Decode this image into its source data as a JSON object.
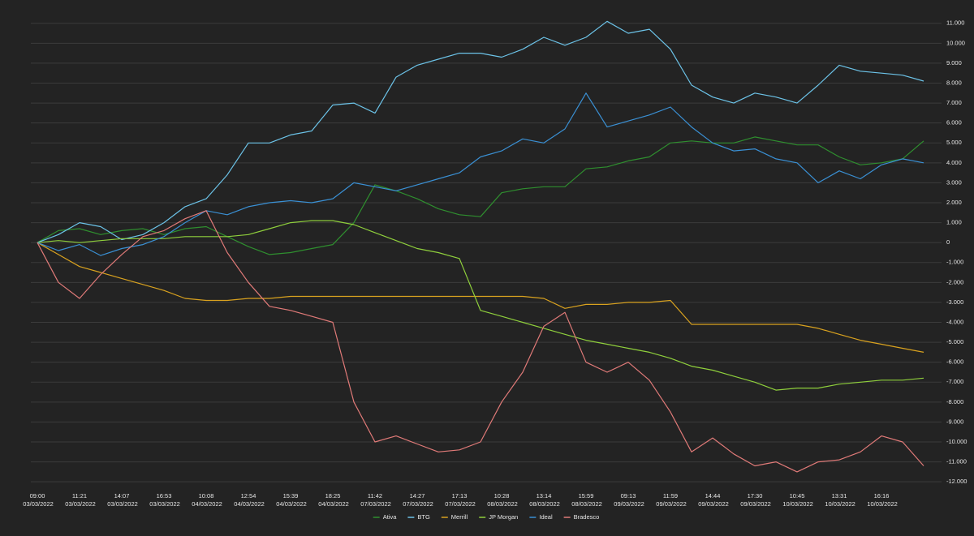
{
  "chart_data": {
    "type": "line",
    "categories": [
      "09:00 03/03/2022",
      null,
      "11:21 03/03/2022",
      null,
      "14:07 03/03/2022",
      null,
      "16:53 03/03/2022",
      null,
      "10:08 04/03/2022",
      null,
      "12:54 04/03/2022",
      null,
      "15:39 04/03/2022",
      null,
      "18:25 04/03/2022",
      null,
      "11:42 07/03/2022",
      null,
      "14:27 07/03/2022",
      null,
      "17:13 07/03/2022",
      null,
      "10:28 08/03/2022",
      null,
      "13:14 08/03/2022",
      null,
      "15:59 08/03/2022",
      null,
      "09:13 09/03/2022",
      null,
      "11:59 09/03/2022",
      null,
      "14:44 09/03/2022",
      null,
      "17:30 09/03/2022",
      null,
      "10:45 10/03/2022",
      null,
      "13:31 10/03/2022",
      null,
      "16:16 10/03/2022",
      null,
      null
    ],
    "series": [
      {
        "name": "Ativa",
        "color": "#2f8f2f",
        "values": [
          0,
          600,
          700,
          400,
          600,
          700,
          400,
          700,
          800,
          300,
          -200,
          -600,
          -500,
          -300,
          -100,
          1000,
          2900,
          2600,
          2200,
          1700,
          1400,
          1300,
          2500,
          2700,
          2800,
          2800,
          3700,
          3800,
          4100,
          4300,
          5000,
          5100,
          5000,
          5000,
          5300,
          5100,
          4900,
          4900,
          4300,
          3900,
          4000,
          4200,
          5100
        ]
      },
      {
        "name": "BTG",
        "color": "#6cc3e8",
        "values": [
          0,
          400,
          1000,
          800,
          150,
          400,
          1000,
          1800,
          2200,
          3400,
          5000,
          5000,
          5400,
          5600,
          6900,
          7000,
          6500,
          8300,
          8900,
          9200,
          9500,
          9500,
          9300,
          9700,
          10300,
          9900,
          10300,
          11100,
          10500,
          10700,
          9700,
          7900,
          7300,
          7000,
          7500,
          7300,
          7000,
          7900,
          8900,
          8600,
          8500,
          8400,
          8100
        ]
      },
      {
        "name": "Merrill",
        "color": "#d9a21f",
        "values": [
          0,
          -600,
          -1200,
          -1500,
          -1800,
          -2100,
          -2400,
          -2800,
          -2900,
          -2900,
          -2800,
          -2800,
          -2700,
          -2700,
          -2700,
          -2700,
          -2700,
          -2700,
          -2700,
          -2700,
          -2700,
          -2700,
          -2700,
          -2700,
          -2800,
          -3300,
          -3100,
          -3100,
          -3000,
          -3000,
          -2900,
          -4100,
          -4100,
          -4100,
          -4100,
          -4100,
          -4100,
          -4300,
          -4600,
          -4900,
          -5100,
          -5300,
          -5500
        ]
      },
      {
        "name": "JP Morgan",
        "color": "#8fcf3c",
        "values": [
          0,
          100,
          0,
          100,
          200,
          200,
          200,
          300,
          300,
          300,
          400,
          700,
          1000,
          1100,
          1100,
          900,
          500,
          100,
          -300,
          -500,
          -800,
          -3400,
          -3700,
          -4000,
          -4300,
          -4600,
          -4900,
          -5100,
          -5300,
          -5500,
          -5800,
          -6200,
          -6400,
          -6700,
          -7000,
          -7400,
          -7300,
          -7300,
          -7100,
          -7000,
          -6900,
          -6900,
          -6800
        ]
      },
      {
        "name": "Ideal",
        "color": "#3a90d4",
        "values": [
          0,
          -400,
          -100,
          -650,
          -300,
          -100,
          300,
          1000,
          1600,
          1400,
          1800,
          2000,
          2100,
          2000,
          2200,
          3000,
          2800,
          2600,
          2900,
          3200,
          3500,
          4300,
          4600,
          5200,
          5000,
          5700,
          7500,
          5800,
          6100,
          6400,
          6800,
          5800,
          5000,
          4600,
          4700,
          4200,
          4000,
          3000,
          3600,
          3200,
          3900,
          4200,
          4000
        ]
      },
      {
        "name": "Bradesco",
        "color": "#e07a78",
        "values": [
          0,
          -2000,
          -2800,
          -1600,
          -600,
          300,
          600,
          1200,
          1600,
          -500,
          -2000,
          -3200,
          -3400,
          -3700,
          -4000,
          -8000,
          -10000,
          -9700,
          -10100,
          -10500,
          -10400,
          -10000,
          -8000,
          -6500,
          -4200,
          -3500,
          -6000,
          -6500,
          -6000,
          -6900,
          -8500,
          -10500,
          -9800,
          -10600,
          -11200,
          -11000,
          -11500,
          -11000,
          -10900,
          -10500,
          -9700,
          -10000,
          -11200
        ]
      }
    ],
    "ylim": [
      -12400,
      11600
    ],
    "yticks": [
      {
        "value": 11000,
        "label": "11.000"
      },
      {
        "value": 10000,
        "label": "10.000"
      },
      {
        "value": 9000,
        "label": "9.000"
      },
      {
        "value": 8000,
        "label": "8.000"
      },
      {
        "value": 7000,
        "label": "7.000"
      },
      {
        "value": 6000,
        "label": "6.000"
      },
      {
        "value": 5000,
        "label": "5.000"
      },
      {
        "value": 4000,
        "label": "4.000"
      },
      {
        "value": 3000,
        "label": "3.000"
      },
      {
        "value": 2000,
        "label": "2.000"
      },
      {
        "value": 1000,
        "label": "1.000"
      },
      0,
      {
        "value": -1000,
        "label": "-1.000"
      },
      {
        "value": -2000,
        "label": "-2.000"
      },
      {
        "value": -3000,
        "label": "-3.000"
      },
      {
        "value": -4000,
        "label": "-4.000"
      },
      {
        "value": -5000,
        "label": "-5.000"
      },
      {
        "value": -6000,
        "label": "-6.000"
      },
      {
        "value": -7000,
        "label": "-7.000"
      },
      {
        "value": -8000,
        "label": "-8.000"
      },
      {
        "value": -9000,
        "label": "-9.000"
      },
      {
        "value": -10000,
        "label": "-10.000"
      },
      {
        "value": -11000,
        "label": "-11.000"
      },
      {
        "value": -12000,
        "label": "-12.000"
      }
    ],
    "grid": true,
    "legend": "bottom"
  }
}
